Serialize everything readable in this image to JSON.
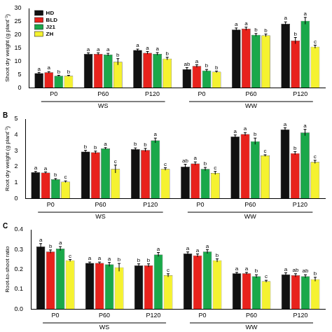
{
  "chart_data": [
    {
      "type": "bar",
      "y_label": "Shoot dry weight (g plant⁻¹)",
      "categories": [
        "P0",
        "P60",
        "P120",
        "P0",
        "P60",
        "P120"
      ],
      "group_labels": [
        "WS",
        "WW"
      ],
      "ylim": [
        0,
        30
      ],
      "yticks": [
        0,
        5,
        10,
        15,
        20,
        25,
        30
      ],
      "grid": false,
      "legend": "upper left",
      "series": [
        {
          "name": "HD",
          "color": "#111111",
          "values": [
            5.5,
            12.8,
            14.2,
            7.0,
            22.0,
            24.2
          ],
          "errors": [
            0.3,
            0.4,
            0.4,
            0.6,
            0.6,
            0.7
          ],
          "letters": [
            "a",
            "a",
            "a",
            "ab",
            "a",
            "a"
          ]
        },
        {
          "name": "BLD",
          "color": "#e8221c",
          "values": [
            5.8,
            12.8,
            13.2,
            8.2,
            22.3,
            17.8
          ],
          "errors": [
            0.3,
            0.4,
            0.5,
            0.5,
            0.6,
            1.2
          ],
          "letters": [
            "a",
            "a",
            "a",
            "a",
            "a",
            "b"
          ]
        },
        {
          "name": "J21",
          "color": "#1aa84a",
          "values": [
            4.5,
            12.5,
            12.8,
            6.5,
            20.0,
            25.3
          ],
          "errors": [
            0.2,
            0.5,
            0.5,
            0.4,
            0.5,
            1.3
          ],
          "letters": [
            "b",
            "a",
            "a",
            "b",
            "b",
            "a"
          ]
        },
        {
          "name": "ZH",
          "color": "#f5f230",
          "values": [
            4.5,
            9.8,
            11.0,
            6.0,
            19.8,
            15.5
          ],
          "errors": [
            0.2,
            1.2,
            0.5,
            0.3,
            0.5,
            0.6
          ],
          "letters": [
            "b",
            "b",
            "b",
            "b",
            "b",
            "c"
          ]
        }
      ]
    },
    {
      "type": "bar",
      "panel_label": "B",
      "y_label": "Root dry weight (g plant⁻¹)",
      "categories": [
        "P0",
        "P60",
        "P120",
        "P0",
        "P60",
        "P120"
      ],
      "group_labels": [
        "WS",
        "WW"
      ],
      "ylim": [
        0,
        5
      ],
      "yticks": [
        0,
        1,
        2,
        3,
        4,
        5
      ],
      "grid": false,
      "series": [
        {
          "name": "HD",
          "color": "#111111",
          "values": [
            1.65,
            2.95,
            3.1,
            2.0,
            3.9,
            4.35
          ],
          "errors": [
            0.05,
            0.08,
            0.08,
            0.15,
            0.1,
            0.1
          ],
          "letters": [
            "a",
            "b",
            "b",
            "ab",
            "a",
            "a"
          ]
        },
        {
          "name": "BLD",
          "color": "#e8221c",
          "values": [
            1.62,
            2.9,
            3.05,
            2.2,
            4.05,
            2.85
          ],
          "errors": [
            0.05,
            0.08,
            0.1,
            0.1,
            0.1,
            0.1
          ],
          "letters": [
            "a",
            "b",
            "b",
            "a",
            "a",
            "b"
          ]
        },
        {
          "name": "J21",
          "color": "#1aa84a",
          "values": [
            1.2,
            3.15,
            3.65,
            1.85,
            3.6,
            4.15
          ],
          "errors": [
            0.05,
            0.05,
            0.15,
            0.1,
            0.2,
            0.2
          ],
          "letters": [
            "b",
            "a",
            "a",
            "b",
            "b",
            "a"
          ]
        },
        {
          "name": "ZH",
          "color": "#f5f230",
          "values": [
            1.05,
            1.85,
            1.85,
            1.6,
            2.7,
            2.3
          ],
          "errors": [
            0.05,
            0.25,
            0.08,
            0.1,
            0.05,
            0.1
          ],
          "letters": [
            "c",
            "c",
            "c",
            "c",
            "c",
            "c"
          ]
        }
      ]
    },
    {
      "type": "bar",
      "panel_label": "C",
      "y_label": "Root-to-shoot ratio",
      "categories": [
        "P0",
        "P60",
        "P120",
        "P0",
        "P60",
        "P120"
      ],
      "group_labels": [
        "WS",
        "WW"
      ],
      "ylim": [
        0,
        0.4
      ],
      "yticks": [
        {
          "value": 0,
          "label": "0.0"
        },
        0.1,
        0.2,
        0.3,
        0.4
      ],
      "grid": false,
      "series": [
        {
          "name": "HD",
          "color": "#111111",
          "values": [
            0.315,
            0.232,
            0.22,
            0.28,
            0.18,
            0.175
          ],
          "errors": [
            0.015,
            0.005,
            0.008,
            0.008,
            0.005,
            0.008
          ],
          "letters": [
            "a",
            "a",
            "b",
            "a",
            "a",
            "a"
          ]
        },
        {
          "name": "BLD",
          "color": "#e8221c",
          "values": [
            0.29,
            0.232,
            0.22,
            0.27,
            0.18,
            0.17
          ],
          "errors": [
            0.008,
            0.005,
            0.008,
            0.008,
            0.005,
            0.008
          ],
          "letters": [
            "b",
            "a",
            "b",
            "a",
            "a",
            "ab"
          ]
        },
        {
          "name": "J21",
          "color": "#1aa84a",
          "values": [
            0.305,
            0.225,
            0.275,
            0.29,
            0.165,
            0.165
          ],
          "errors": [
            0.01,
            0.01,
            0.01,
            0.01,
            0.008,
            0.008
          ],
          "letters": [
            "a",
            "a",
            "a",
            "a",
            "b",
            "ab"
          ]
        },
        {
          "name": "ZH",
          "color": "#f5f230",
          "values": [
            0.245,
            0.21,
            0.17,
            0.245,
            0.14,
            0.15
          ],
          "errors": [
            0.005,
            0.02,
            0.008,
            0.008,
            0.005,
            0.01
          ],
          "letters": [
            "c",
            "b",
            "c",
            "b",
            "c",
            "b"
          ]
        }
      ]
    }
  ]
}
